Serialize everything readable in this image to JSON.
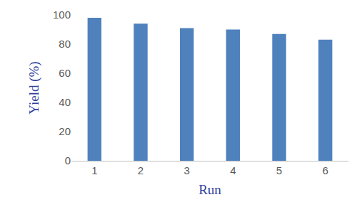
{
  "chart_data": {
    "type": "bar",
    "categories": [
      "1",
      "2",
      "3",
      "4",
      "5",
      "6"
    ],
    "values": [
      98,
      94,
      91,
      90,
      87,
      83
    ],
    "color": "#4f81bd",
    "x_label": "Run",
    "y_label": "Yield (%)",
    "ylim": [
      0,
      100
    ],
    "yticks": [
      0,
      20,
      40,
      60,
      80,
      100
    ],
    "grid": false
  }
}
